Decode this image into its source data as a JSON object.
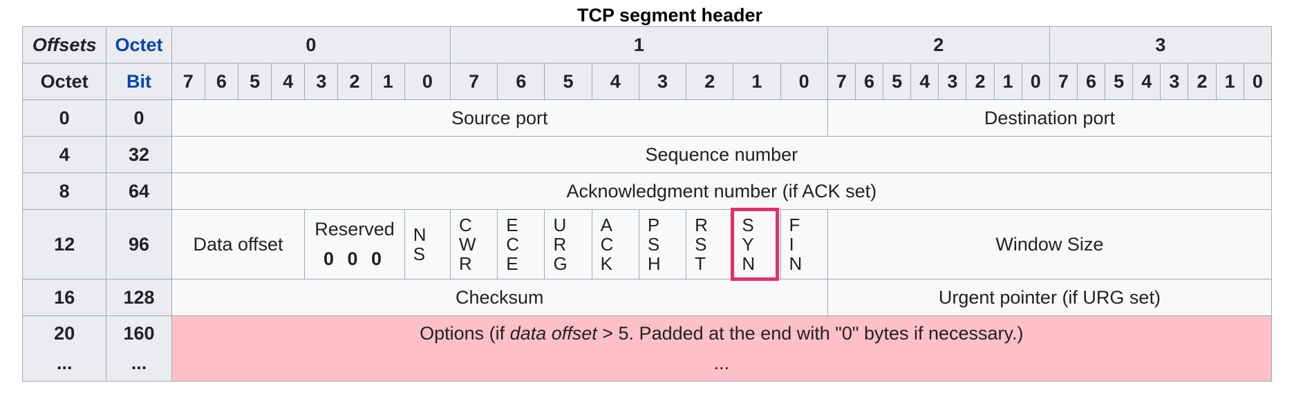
{
  "caption": "TCP segment header",
  "header": {
    "offsets": "Offsets",
    "octet_link": "Octet",
    "octet": "Octet",
    "bit_link": "Bit",
    "octet_groups": [
      "0",
      "1",
      "2",
      "3"
    ],
    "bits": [
      "7",
      "6",
      "5",
      "4",
      "3",
      "2",
      "1",
      "0"
    ]
  },
  "rows": [
    {
      "octet": "0",
      "bit": "0",
      "fields": [
        "Source port",
        "Destination port"
      ]
    },
    {
      "octet": "4",
      "bit": "32",
      "fields": [
        "Sequence number"
      ]
    },
    {
      "octet": "8",
      "bit": "64",
      "fields": [
        "Acknowledgment number (if ACK set)"
      ]
    },
    {
      "octet": "12",
      "bit": "96",
      "data_offset": "Data offset",
      "reserved": "Reserved",
      "reserved_bits": "0 0 0",
      "flags": [
        [
          "N",
          "S"
        ],
        [
          "C",
          "W",
          "R"
        ],
        [
          "E",
          "C",
          "E"
        ],
        [
          "U",
          "R",
          "G"
        ],
        [
          "A",
          "C",
          "K"
        ],
        [
          "P",
          "S",
          "H"
        ],
        [
          "R",
          "S",
          "T"
        ],
        [
          "S",
          "Y",
          "N"
        ],
        [
          "F",
          "I",
          "N"
        ]
      ],
      "window": "Window Size"
    },
    {
      "octet": "16",
      "bit": "128",
      "fields": [
        "Checksum",
        "Urgent pointer (if URG set)"
      ]
    },
    {
      "octet": "20",
      "octet2": "...",
      "bit": "160",
      "bit2": "...",
      "options_pre": "Options (if ",
      "options_it": "data offset",
      "options_post": " > 5. Padded at the end with \"0\" bytes if necessary.)",
      "options_line2": "..."
    }
  ],
  "colors": {
    "header_bg": "#eaecf0",
    "cell_bg": "#f8f9fa",
    "options_bg": "#ffc0c7",
    "highlight_border": "#e0306d",
    "link": "#0645ad"
  }
}
